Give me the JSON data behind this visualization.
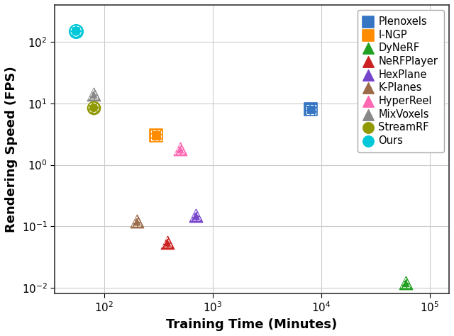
{
  "series": [
    {
      "name": "Plenoxels",
      "x": [
        8000
      ],
      "y": [
        8.0
      ],
      "color": "#3575c3",
      "marker": "s",
      "markersize": 13,
      "edgecolor": "white",
      "linestyle": "--"
    },
    {
      "name": "I-NGP",
      "x": [
        300
      ],
      "y": [
        3.0
      ],
      "color": "#ff8c00",
      "marker": "s",
      "markersize": 13,
      "edgecolor": "white",
      "linestyle": "--"
    },
    {
      "name": "DyNeRF",
      "x": [
        60000
      ],
      "y": [
        0.012
      ],
      "color": "#22a022",
      "marker": "^",
      "markersize": 13,
      "edgecolor": "white",
      "linestyle": "--"
    },
    {
      "name": "NeRFPlayer",
      "x": [
        380
      ],
      "y": [
        0.055
      ],
      "color": "#cc2222",
      "marker": "^",
      "markersize": 13,
      "edgecolor": "white",
      "linestyle": "--"
    },
    {
      "name": "HexPlane",
      "x": [
        700
      ],
      "y": [
        0.15
      ],
      "color": "#7744cc",
      "marker": "^",
      "markersize": 13,
      "edgecolor": "white",
      "linestyle": "--"
    },
    {
      "name": "K-Planes",
      "x": [
        200
      ],
      "y": [
        0.12
      ],
      "color": "#9b6b4a",
      "marker": "^",
      "markersize": 13,
      "edgecolor": "white",
      "linestyle": "--"
    },
    {
      "name": "HyperReel",
      "x": [
        500
      ],
      "y": [
        1.8
      ],
      "color": "#ff69b4",
      "marker": "^",
      "markersize": 13,
      "edgecolor": "white",
      "linestyle": "--"
    },
    {
      "name": "MixVoxels",
      "x": [
        80
      ],
      "y": [
        14
      ],
      "color": "#888888",
      "marker": "^",
      "markersize": 13,
      "edgecolor": "white",
      "linestyle": "--"
    },
    {
      "name": "StreamRF",
      "x": [
        80
      ],
      "y": [
        8.5
      ],
      "color": "#909a00",
      "marker": "o",
      "markersize": 13,
      "edgecolor": "white",
      "linestyle": "--"
    },
    {
      "name": "Ours",
      "x": [
        55
      ],
      "y": [
        150
      ],
      "color": "#00c8d8",
      "marker": "o",
      "markersize": 14,
      "edgecolor": "white",
      "linestyle": "--"
    }
  ],
  "xlabel": "Training Time (Minutes)",
  "ylabel": "Rendering Speed (FPS)",
  "xlim": [
    35,
    150000
  ],
  "ylim": [
    0.008,
    400
  ],
  "background_color": "#ffffff",
  "grid_color": "#cccccc"
}
